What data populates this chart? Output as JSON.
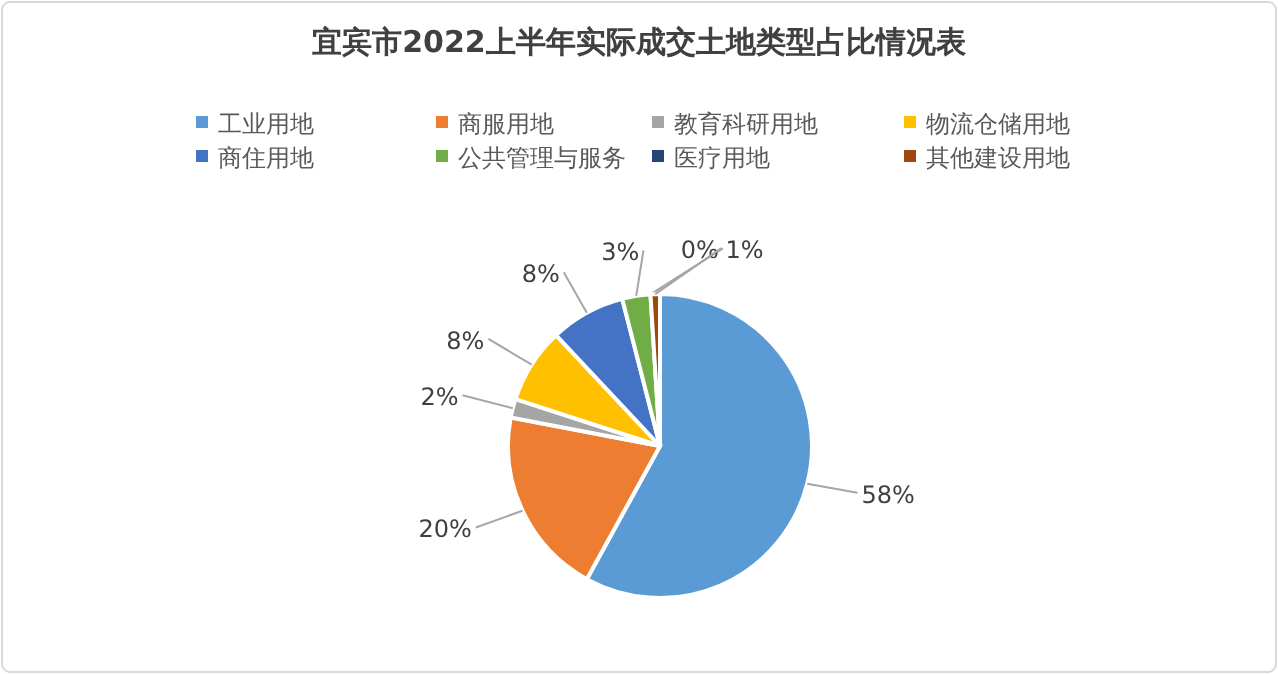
{
  "chart_data": {
    "type": "pie",
    "title": "宜宾市2022上半年实际成交土地类型占比情况表",
    "categories": [
      "工业用地",
      "商服用地",
      "教育科研用地",
      "物流仓储用地",
      "商住用地",
      "公共管理与服务",
      "医疗用地",
      "其他建设用地"
    ],
    "values": [
      58,
      20,
      2,
      8,
      8,
      3,
      0,
      1
    ],
    "colors": [
      "#5b9bd5",
      "#ed7d31",
      "#a5a5a5",
      "#ffc000",
      "#4472c4",
      "#70ad47",
      "#264478",
      "#9e480e"
    ],
    "value_labels": [
      "58%",
      "20%",
      "2%",
      "8%",
      "8%",
      "3%",
      "0%",
      "1%"
    ],
    "legend": "top"
  }
}
